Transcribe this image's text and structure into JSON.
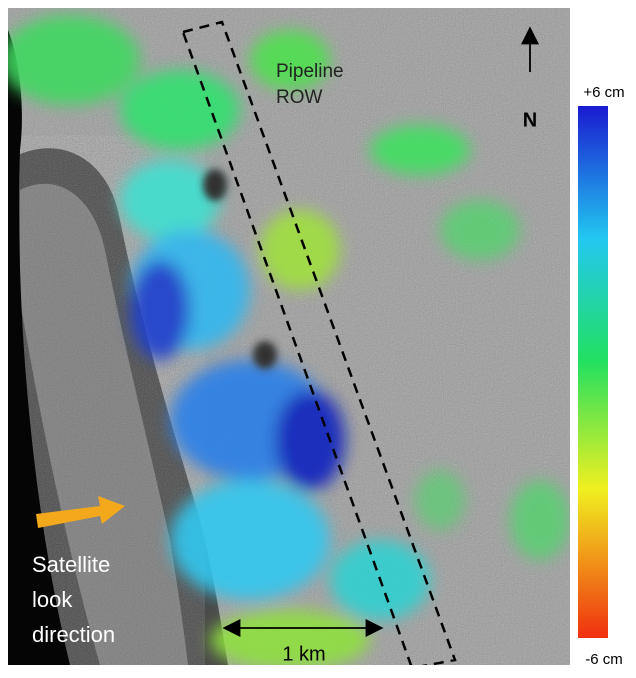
{
  "map": {
    "labels": {
      "pipeline": [
        "Pipeline",
        "ROW"
      ],
      "north": "N",
      "satellite": [
        "Satellite",
        "look",
        "direction"
      ],
      "scale_bar": "1 km"
    },
    "colorbar": {
      "max_label": "+6 cm",
      "min_label": "-6 cm"
    }
  }
}
